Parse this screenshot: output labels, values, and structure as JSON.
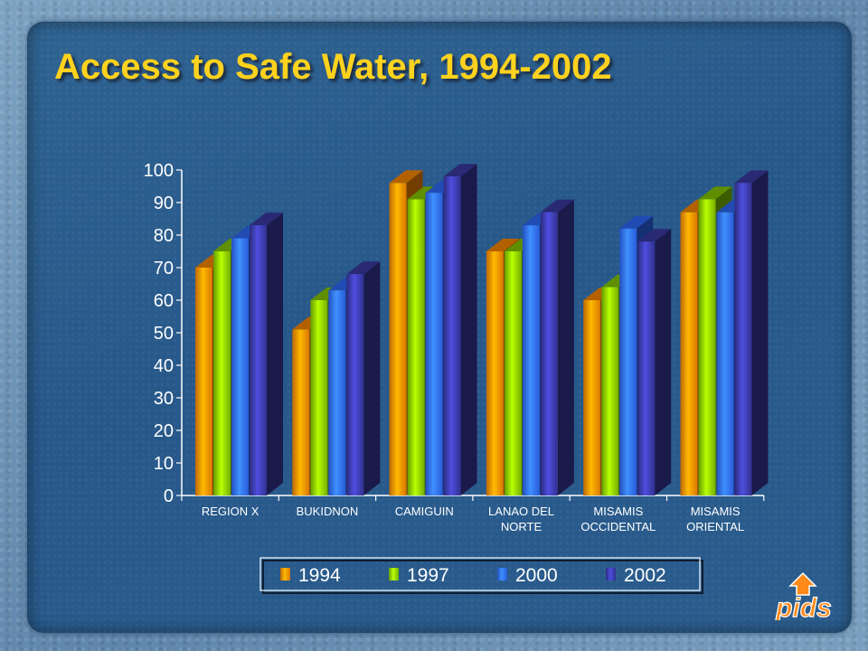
{
  "title": "Access to Safe Water, 1994-2002",
  "chart_data": {
    "type": "bar",
    "title": "Access to Safe Water, 1994-2002",
    "xlabel": "",
    "ylabel": "",
    "ylim": [
      0,
      100
    ],
    "yticks": [
      0,
      10,
      20,
      30,
      40,
      50,
      60,
      70,
      80,
      90,
      100
    ],
    "grid": false,
    "legend_position": "bottom",
    "categories": [
      [
        "REGION X"
      ],
      [
        "BUKIDNON"
      ],
      [
        "CAMIGUIN"
      ],
      [
        "LANAO DEL",
        "NORTE"
      ],
      [
        "MISAMIS",
        "OCCIDENTAL"
      ],
      [
        "MISAMIS",
        "ORIENTAL"
      ]
    ],
    "series": [
      {
        "name": "1994",
        "color": "#ff8a00",
        "values": [
          70,
          51,
          96,
          75,
          60,
          87
        ]
      },
      {
        "name": "1997",
        "color": "#88cc00",
        "values": [
          75,
          60,
          91,
          75,
          64,
          91
        ]
      },
      {
        "name": "2000",
        "color": "#2f6bff",
        "values": [
          79,
          63,
          93,
          83,
          82,
          87
        ]
      },
      {
        "name": "2002",
        "color": "#3a3aa6",
        "values": [
          83,
          68,
          98,
          87,
          78,
          96
        ]
      }
    ]
  },
  "logo_text": "pids",
  "colors": {
    "title": "#ffd21e",
    "panel": "#2a5c8c"
  }
}
